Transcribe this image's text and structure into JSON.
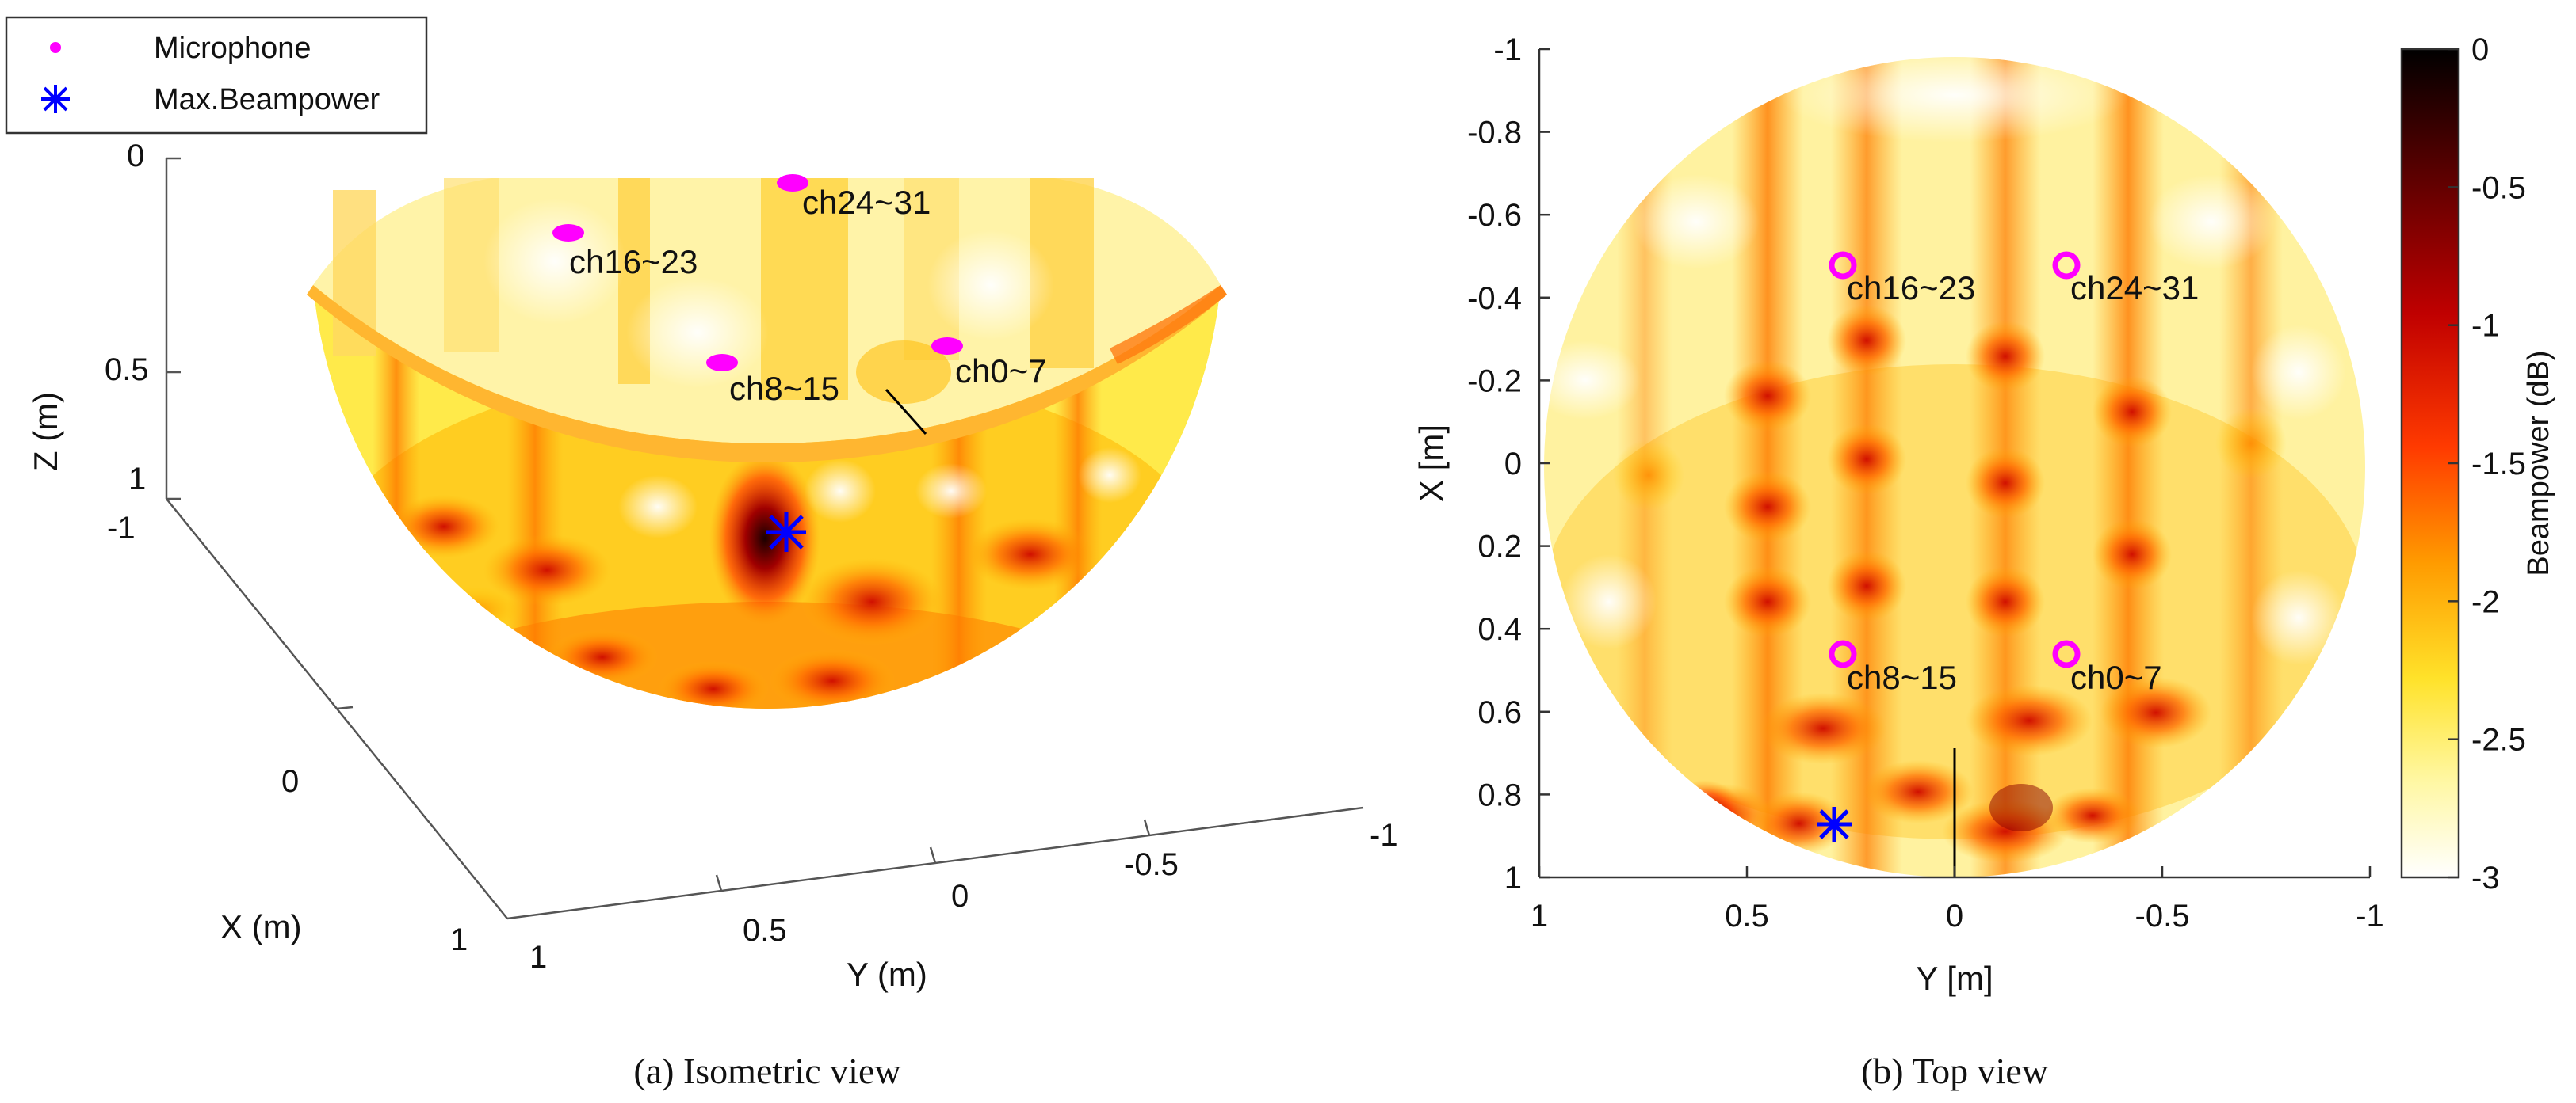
{
  "legend": {
    "items": [
      {
        "label": "Microphone",
        "marker": "magenta-dot",
        "color": "#ff00ff"
      },
      {
        "label": "Max.Beampower",
        "marker": "blue-asterisk",
        "color": "#0000ff"
      }
    ]
  },
  "colors": {
    "microphone": "#ff00ff",
    "max_beampower": "#0000ff",
    "colormap": [
      "#000000",
      "#5a0000",
      "#c00000",
      "#ff3a00",
      "#ff9b00",
      "#ffe22a",
      "#fff7a0",
      "#ffffff"
    ]
  },
  "chart_data": [
    {
      "type": "heatmap",
      "subtype": "3d-hemisphere-surface",
      "caption": "(a) Isometric view",
      "xlabel": "X (m)",
      "ylabel": "Y (m)",
      "zlabel": "Z (m)",
      "xticks": [
        "-1",
        "0",
        "1"
      ],
      "yticks": [
        "1",
        "0.5",
        "0",
        "-0.5",
        "-1"
      ],
      "zticks": [
        "0",
        "0.5",
        "1"
      ],
      "xlim": [
        -1,
        1
      ],
      "ylim": [
        1,
        -1
      ],
      "zlim": [
        0,
        1
      ],
      "microphones": [
        {
          "label": "ch24~31",
          "x": -0.46,
          "y": -0.27
        },
        {
          "label": "ch16~23",
          "x": -0.46,
          "y": 0.27
        },
        {
          "label": "ch8~15",
          "x": 0.46,
          "y": 0.27
        },
        {
          "label": "ch0~7",
          "x": 0.46,
          "y": -0.27
        }
      ],
      "max_beampower": {
        "x": 0.87,
        "y": 0.3
      }
    },
    {
      "type": "heatmap",
      "subtype": "top-view",
      "caption": "(b) Top view",
      "xlabel": "Y [m]",
      "ylabel": "X [m]",
      "xticks": [
        "1",
        "0.5",
        "0",
        "-0.5",
        "-1"
      ],
      "yticks": [
        "-1",
        "-0.8",
        "-0.6",
        "-0.4",
        "-0.2",
        "0",
        "0.2",
        "0.4",
        "0.6",
        "0.8",
        "1"
      ],
      "xlim": [
        1,
        -1
      ],
      "ylim": [
        -1,
        1
      ],
      "colorbar": {
        "label": "Beampower (dB)",
        "ticks": [
          "0",
          "-0.5",
          "-1",
          "-1.5",
          "-2",
          "-2.5",
          "-3"
        ],
        "range": [
          -3,
          0
        ]
      },
      "microphones": [
        {
          "label": "ch16~23",
          "x": -0.46,
          "y": 0.27
        },
        {
          "label": "ch24~31",
          "x": -0.46,
          "y": -0.27
        },
        {
          "label": "ch8~15",
          "x": 0.46,
          "y": 0.27
        },
        {
          "label": "ch0~7",
          "x": 0.46,
          "y": -0.27
        }
      ],
      "max_beampower": {
        "x": 0.87,
        "y": 0.3
      }
    }
  ]
}
